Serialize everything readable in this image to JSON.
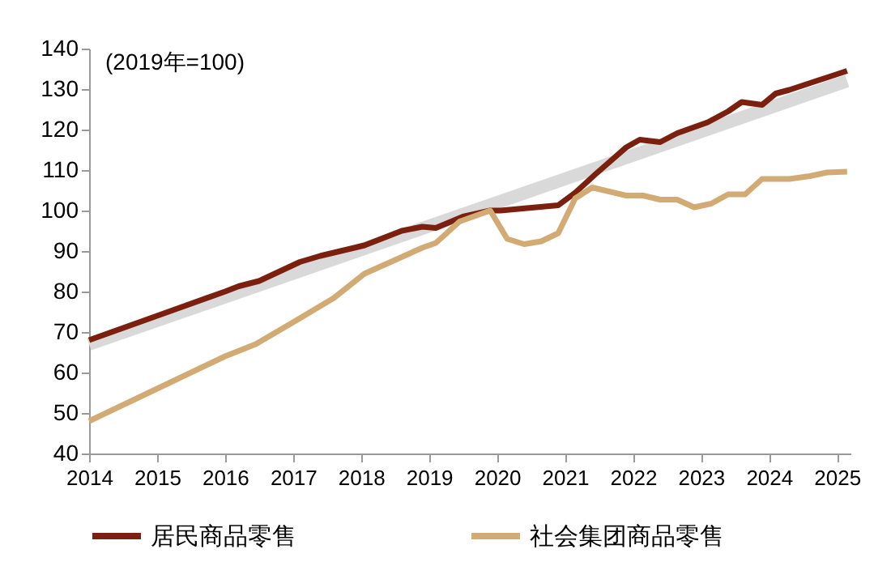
{
  "chart_data": {
    "type": "line",
    "annotations": [
      "(2019年=100)"
    ],
    "xlim": [
      2014,
      2025.2
    ],
    "xticks": [
      2014,
      2015,
      2016,
      2017,
      2018,
      2019,
      2020,
      2021,
      2022,
      2023,
      2024,
      2025
    ],
    "ylim": [
      40,
      140
    ],
    "yticks": [
      40,
      50,
      60,
      70,
      80,
      90,
      100,
      110,
      120,
      130,
      140
    ],
    "grid": false,
    "legend": "bottom",
    "marker": "none",
    "line_style": "solid",
    "series": [
      {
        "name": "居民商品零售",
        "color": "#7b1f0e",
        "x": [
          2014,
          2015,
          2016,
          2016.2,
          2016.5,
          2017.1,
          2017.4,
          2018.05,
          2018.6,
          2018.9,
          2019.1,
          2019.5,
          2019.9,
          2020.05,
          2020.9,
          2021.15,
          2021.45,
          2021.9,
          2022.1,
          2022.4,
          2022.65,
          2023.1,
          2023.4,
          2023.6,
          2023.9,
          2024.1,
          2024.3,
          2025.15
        ],
        "values": [
          68,
          74,
          80,
          81.3,
          82.6,
          87.3,
          88.8,
          91.4,
          95,
          96,
          95.7,
          98.5,
          100,
          100,
          101.3,
          104.4,
          109,
          115.6,
          117.5,
          116.9,
          119.1,
          121.8,
          124.5,
          126.8,
          126.1,
          128.9,
          129.8,
          134.5
        ]
      },
      {
        "name": "社会集团商品零售",
        "color": "#d2ab74",
        "x": [
          2014,
          2015,
          2016,
          2016.45,
          2017,
          2017.6,
          2018.05,
          2018.9,
          2019.1,
          2019.45,
          2019.9,
          2020.15,
          2020.4,
          2020.65,
          2020.9,
          2021.15,
          2021.4,
          2021.9,
          2022.15,
          2022.4,
          2022.65,
          2022.9,
          2023.15,
          2023.4,
          2023.65,
          2023.9,
          2024.3,
          2024.6,
          2024.85,
          2025.15
        ],
        "values": [
          48,
          56,
          64,
          67,
          72.4,
          78.4,
          84.4,
          90.8,
          92,
          97.3,
          100,
          93,
          91.7,
          92.4,
          94.4,
          103,
          105.7,
          103.7,
          103.7,
          102.7,
          102.7,
          100.8,
          101.7,
          104,
          104,
          107.8,
          107.8,
          108.5,
          109.4,
          109.6
        ]
      },
      {
        "type": "line",
        "color": "#d9d9d9",
        "x": [
          2014,
          2025.15
        ],
        "values": [
          67,
          132
        ]
      }
    ]
  }
}
